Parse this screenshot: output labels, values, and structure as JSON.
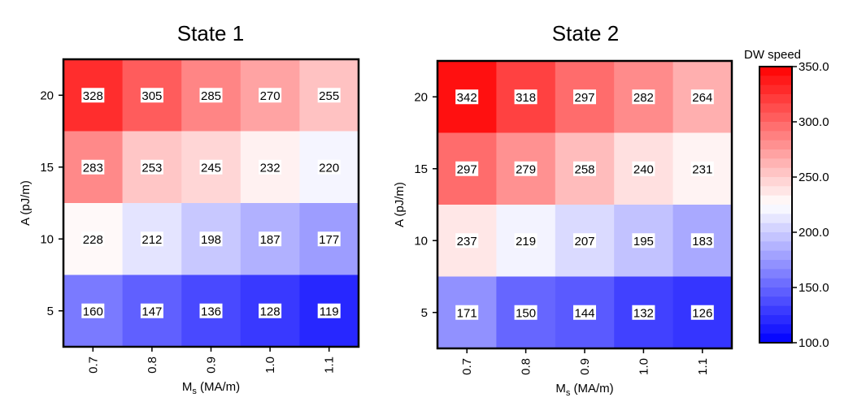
{
  "colors": {
    "low": "#0000ff",
    "mid": "#ffffff",
    "high": "#ff0000",
    "frame": "#000000"
  },
  "chart_data": [
    {
      "type": "heatmap",
      "title": "State 1",
      "xlabel": "M",
      "xlabel_sub": "s",
      "xlabel_unit": " (MA/m)",
      "ylabel": "A (pJ/m)",
      "x": [
        "0.7",
        "0.8",
        "0.9",
        "1.0",
        "1.1"
      ],
      "y": [
        "20",
        "15",
        "10",
        "5"
      ],
      "values": [
        [
          328,
          305,
          285,
          270,
          255
        ],
        [
          283,
          253,
          245,
          232,
          220
        ],
        [
          228,
          212,
          198,
          187,
          177
        ],
        [
          160,
          147,
          136,
          128,
          119
        ]
      ]
    },
    {
      "type": "heatmap",
      "title": "State 2",
      "xlabel": "M",
      "xlabel_sub": "s",
      "xlabel_unit": " (MA/m)",
      "ylabel": "A (pJ/m)",
      "x": [
        "0.7",
        "0.8",
        "0.9",
        "1.0",
        "1.1"
      ],
      "y": [
        "20",
        "15",
        "10",
        "5"
      ],
      "values": [
        [
          342,
          318,
          297,
          282,
          264
        ],
        [
          297,
          279,
          258,
          240,
          231
        ],
        [
          237,
          219,
          207,
          195,
          183
        ],
        [
          171,
          150,
          144,
          132,
          126
        ]
      ]
    }
  ],
  "colorbar": {
    "title": "DW  speed",
    "min": 100,
    "max": 350,
    "ticks": [
      "100.0",
      "150.0",
      "200.0",
      "250.0",
      "300.0",
      "350.0"
    ],
    "tick_values": [
      100,
      150,
      200,
      250,
      300,
      350
    ],
    "gradient": [
      "#0000ff",
      "#ffffff",
      "#ff0000"
    ],
    "levels": 30
  }
}
